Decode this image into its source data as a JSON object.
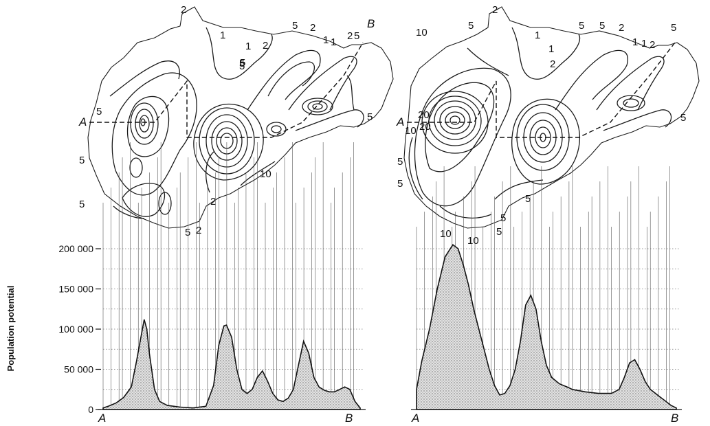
{
  "chart_data": [
    {
      "type": "area",
      "ylabel": "Population potential",
      "yticks": [
        "0",
        "50 000",
        "100 000",
        "150 000",
        "200 000"
      ],
      "ylim": [
        0,
        200000
      ],
      "start_label": "A",
      "end_label": "B",
      "x": [
        0,
        2,
        5,
        8,
        11,
        13,
        15,
        16,
        17,
        18,
        20,
        22,
        25,
        30,
        35,
        40,
        43,
        45,
        47,
        48,
        50,
        52,
        54,
        56,
        58,
        60,
        62,
        64,
        66,
        68,
        70,
        72,
        74,
        76,
        78,
        80,
        82,
        84,
        86,
        88,
        90,
        92,
        94,
        96,
        98,
        100
      ],
      "y": [
        2000,
        4000,
        8000,
        15000,
        28000,
        60000,
        95000,
        112000,
        100000,
        70000,
        25000,
        10000,
        5000,
        3000,
        2000,
        4000,
        30000,
        80000,
        104000,
        105000,
        90000,
        50000,
        25000,
        20000,
        25000,
        40000,
        48000,
        35000,
        20000,
        12000,
        10000,
        14000,
        25000,
        55000,
        85000,
        70000,
        40000,
        28000,
        24000,
        22000,
        22000,
        25000,
        28000,
        25000,
        10000,
        2000
      ],
      "map_contour_labels": [
        "2",
        "1",
        "5",
        "1",
        "5",
        "2",
        "5",
        "2",
        "1",
        "1",
        "2",
        "5",
        "5",
        "5",
        "5",
        "5",
        "5",
        "2",
        "10",
        "5",
        "2"
      ]
    },
    {
      "type": "area",
      "ylim": [
        0,
        200000
      ],
      "start_label": "A",
      "end_label": "B",
      "x": [
        0,
        2,
        5,
        8,
        11,
        14,
        16,
        18,
        20,
        22,
        24,
        26,
        28,
        30,
        32,
        34,
        36,
        38,
        40,
        42,
        44,
        46,
        48,
        50,
        52,
        55,
        58,
        60,
        65,
        70,
        75,
        78,
        80,
        82,
        84,
        86,
        88,
        90,
        92,
        94,
        96,
        98,
        100
      ],
      "y": [
        25000,
        60000,
        100000,
        150000,
        190000,
        205000,
        200000,
        180000,
        155000,
        125000,
        100000,
        75000,
        50000,
        30000,
        18000,
        20000,
        30000,
        50000,
        85000,
        130000,
        142000,
        125000,
        85000,
        55000,
        40000,
        32000,
        28000,
        25000,
        22000,
        20000,
        20000,
        25000,
        40000,
        58000,
        62000,
        50000,
        35000,
        25000,
        20000,
        15000,
        10000,
        5000,
        2000
      ],
      "map_contour_labels": [
        "2",
        "5",
        "10",
        "1",
        "1",
        "5",
        "2",
        "5",
        "2",
        "1",
        "1",
        "2",
        "5",
        "5",
        "20",
        "20",
        "10",
        "5",
        "5",
        "5",
        "10",
        "10",
        "5",
        "5"
      ]
    }
  ]
}
